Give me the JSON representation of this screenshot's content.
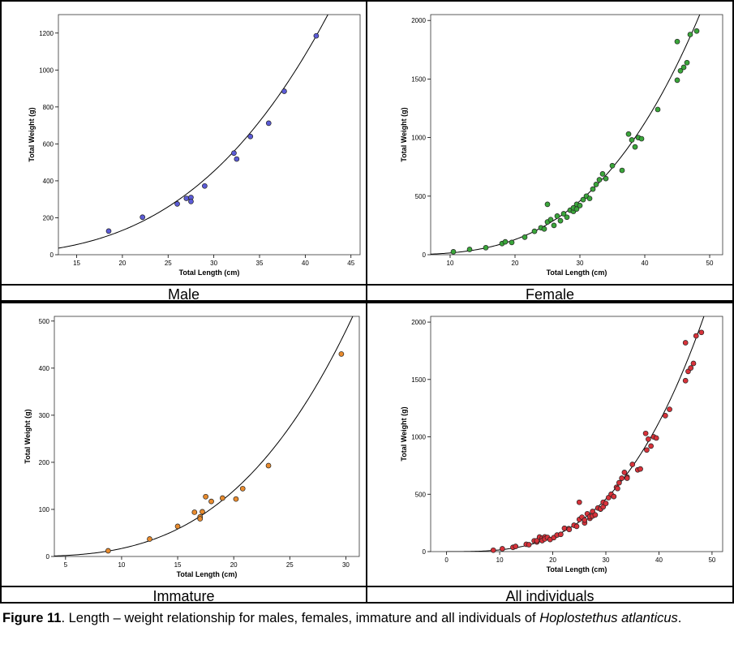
{
  "figure": {
    "caption_label": "Figure 11",
    "caption_text_1": ". Length – weight relationship for males, females, immature and all individuals of ",
    "caption_species": "Hoplostethus atlanticus",
    "caption_end": "."
  },
  "chart_data": [
    {
      "type": "scatter",
      "panel_label": "Male",
      "xlabel": "Total Length (cm)",
      "ylabel": "Total Weight (g)",
      "xlim": [
        13,
        46
      ],
      "ylim": [
        0,
        1300
      ],
      "xticks": [
        15,
        20,
        25,
        30,
        35,
        40,
        45
      ],
      "yticks": [
        0,
        200,
        400,
        600,
        800,
        1000,
        1200
      ],
      "point_color": "#5b5bd6",
      "fit": {
        "a": 0.0146,
        "b": 3.04
      },
      "x": [
        18.5,
        22.2,
        26.0,
        27.0,
        27.5,
        27.5,
        29.0,
        32.2,
        32.5,
        34.0,
        36.0,
        37.7,
        41.2
      ],
      "y": [
        128,
        203,
        275,
        305,
        310,
        288,
        372,
        550,
        518,
        640,
        712,
        885,
        1185
      ]
    },
    {
      "type": "scatter",
      "panel_label": "Female",
      "xlabel": "Total Length (cm)",
      "ylabel": "Total Weight (g)",
      "xlim": [
        7,
        52
      ],
      "ylim": [
        0,
        2050
      ],
      "xticks": [
        10,
        20,
        30,
        40,
        50
      ],
      "yticks": [
        0,
        500,
        1000,
        1500,
        2000
      ],
      "point_color": "#3aa63a",
      "fit": {
        "a": 0.0113,
        "b": 3.12
      },
      "x": [
        10.5,
        13.0,
        15.5,
        18.0,
        18.5,
        19.5,
        21.5,
        23.0,
        24.0,
        24.5,
        25.0,
        25.0,
        25.5,
        26.0,
        26.5,
        27.0,
        27.5,
        28.0,
        28.5,
        29.0,
        29.0,
        29.5,
        29.5,
        30.0,
        30.5,
        31.0,
        31.5,
        32.0,
        32.5,
        33.0,
        33.5,
        34.0,
        35.0,
        36.5,
        37.5,
        38.0,
        38.5,
        39.0,
        39.5,
        42.0,
        45.0,
        45.0,
        45.5,
        46.0,
        46.5,
        47.0,
        48.0
      ],
      "y": [
        25,
        45,
        60,
        95,
        110,
        105,
        150,
        200,
        230,
        220,
        280,
        430,
        300,
        250,
        330,
        290,
        350,
        320,
        380,
        370,
        400,
        390,
        430,
        420,
        470,
        500,
        480,
        560,
        600,
        640,
        690,
        650,
        760,
        720,
        1030,
        980,
        920,
        1000,
        990,
        1240,
        1820,
        1490,
        1570,
        1600,
        1640,
        1880,
        1910
      ]
    },
    {
      "type": "scatter",
      "panel_label": "Immature",
      "xlabel": "Total Length (cm)",
      "ylabel": "Total Weight (g)",
      "xlim": [
        4,
        31.2
      ],
      "ylim": [
        0,
        510
      ],
      "xticks": [
        5,
        10,
        15,
        20,
        25,
        30
      ],
      "yticks": [
        0,
        100,
        200,
        300,
        400,
        500
      ],
      "point_color": "#e88b2e",
      "fit": {
        "a": 0.0155,
        "b": 3.04
      },
      "x": [
        8.8,
        12.5,
        15.0,
        16.5,
        17.0,
        17.0,
        17.2,
        17.5,
        18.0,
        19.0,
        20.2,
        20.8,
        23.1,
        29.6
      ],
      "y": [
        12,
        37,
        64,
        94,
        84,
        80,
        95,
        127,
        117,
        124,
        122,
        144,
        193,
        430
      ]
    },
    {
      "type": "scatter",
      "panel_label": "All individuals",
      "xlabel": "Total Length (cm)",
      "ylabel": "Total Weight (g)",
      "xlim": [
        -3,
        52
      ],
      "ylim": [
        0,
        2050
      ],
      "xticks": [
        0,
        10,
        20,
        30,
        40,
        50
      ],
      "yticks": [
        0,
        500,
        1000,
        1500,
        2000
      ],
      "point_color": "#d8323a",
      "fit": {
        "a": 0.0113,
        "b": 3.12
      },
      "x": [
        8.8,
        10.5,
        12.5,
        13.0,
        15.0,
        15.5,
        16.5,
        17.0,
        17.0,
        17.5,
        18.0,
        18.0,
        18.5,
        18.5,
        19.0,
        19.5,
        20.2,
        20.8,
        21.5,
        22.2,
        23.0,
        23.1,
        24.0,
        24.5,
        25.0,
        25.0,
        25.5,
        26.0,
        26.0,
        26.5,
        27.0,
        27.0,
        27.5,
        27.5,
        28.0,
        28.5,
        29.0,
        29.0,
        29.5,
        29.5,
        30.0,
        30.5,
        31.0,
        31.5,
        32.0,
        32.2,
        32.5,
        33.0,
        33.5,
        34.0,
        34.0,
        35.0,
        36.0,
        36.5,
        37.5,
        37.7,
        38.0,
        38.5,
        39.0,
        39.5,
        41.2,
        42.0,
        45.0,
        45.0,
        45.5,
        46.0,
        46.5,
        47.0,
        48.0
      ],
      "y": [
        12,
        25,
        37,
        45,
        64,
        60,
        94,
        84,
        95,
        127,
        117,
        95,
        128,
        110,
        124,
        105,
        122,
        144,
        150,
        203,
        200,
        193,
        230,
        220,
        280,
        430,
        300,
        250,
        275,
        330,
        290,
        305,
        350,
        310,
        320,
        380,
        370,
        372,
        390,
        430,
        420,
        470,
        500,
        480,
        560,
        550,
        600,
        640,
        690,
        650,
        640,
        760,
        712,
        720,
        1030,
        885,
        980,
        920,
        1000,
        990,
        1185,
        1240,
        1820,
        1490,
        1570,
        1600,
        1640,
        1880,
        1910
      ]
    }
  ]
}
